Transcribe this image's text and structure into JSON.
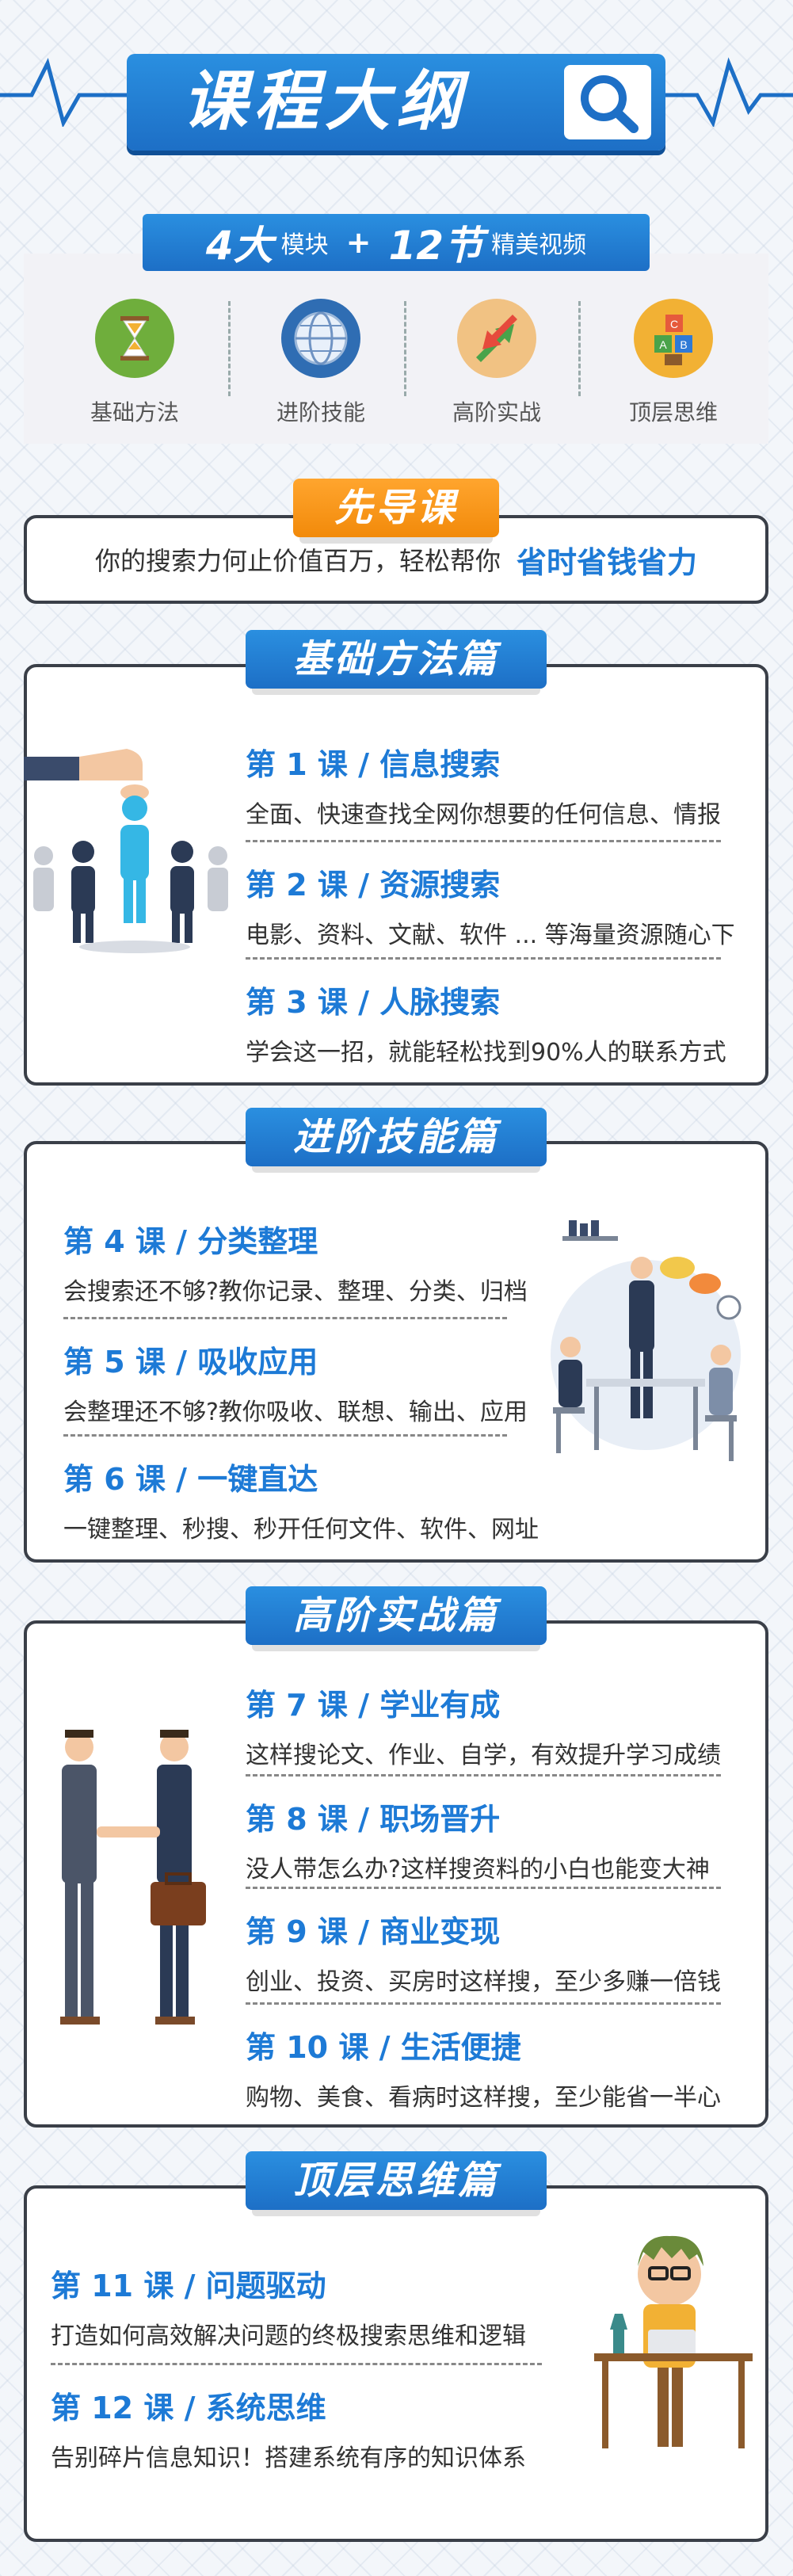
{
  "header": {
    "title": "课程大纲",
    "modules_count": "4大",
    "modules_word": "模块",
    "plus": "+",
    "lessons_count": "12节",
    "lessons_word": "精美视频"
  },
  "modules": [
    {
      "label": "基础方法",
      "icon": "hourglass-icon"
    },
    {
      "label": "进阶技能",
      "icon": "globe-icon"
    },
    {
      "label": "高阶实战",
      "icon": "arrows-icon"
    },
    {
      "label": "顶层思维",
      "icon": "abc-blocks-icon"
    }
  ],
  "intro": {
    "tag": "先导课",
    "text": "你的搜索力何止价值百万，轻松帮你",
    "highlight": "省时省钱省力"
  },
  "sections": [
    {
      "tag": "基础方法篇",
      "lessons": [
        {
          "title": "第 1 课 / 信息搜索",
          "desc": "全面、快速查找全网你想要的任何信息、情报"
        },
        {
          "title": "第 2 课 / 资源搜索",
          "desc": "电影、资料、文献、软件 ... 等海量资源随心下"
        },
        {
          "title": "第 3 课 / 人脉搜索",
          "desc": "学会这一招，就能轻松找到90%人的联系方式"
        }
      ]
    },
    {
      "tag": "进阶技能篇",
      "lessons": [
        {
          "title": "第 4 课 / 分类整理",
          "desc": "会搜索还不够?教你记录、整理、分类、归档"
        },
        {
          "title": "第 5 课 / 吸收应用",
          "desc": "会整理还不够?教你吸收、联想、输出、应用"
        },
        {
          "title": "第 6 课 / 一键直达",
          "desc": "一键整理、秒搜、秒开任何文件、软件、网址"
        }
      ]
    },
    {
      "tag": "高阶实战篇",
      "lessons": [
        {
          "title": "第 7 课 / 学业有成",
          "desc": "这样搜论文、作业、自学，有效提升学习成绩"
        },
        {
          "title": "第 8 课 / 职场晋升",
          "desc": "没人带怎么办?这样搜资料的小白也能变大神"
        },
        {
          "title": "第 9 课 / 商业变现",
          "desc": "创业、投资、买房时这样搜，至少多赚一倍钱"
        },
        {
          "title": "第 10 课 / 生活便捷",
          "desc": "购物、美食、看病时这样搜，至少能省一半心"
        }
      ]
    },
    {
      "tag": "顶层思维篇",
      "lessons": [
        {
          "title": "第 11 课 / 问题驱动",
          "desc": "打造如何高效解决问题的终极搜索思维和逻辑"
        },
        {
          "title": "第 12 课 / 系统思维",
          "desc": "告别碎片信息知识！搭建系统有序的知识体系"
        }
      ]
    }
  ],
  "colors": {
    "primary_blue": "#1d7ad6",
    "accent_orange": "#f28a0a",
    "panel_border": "#3a3f48"
  }
}
